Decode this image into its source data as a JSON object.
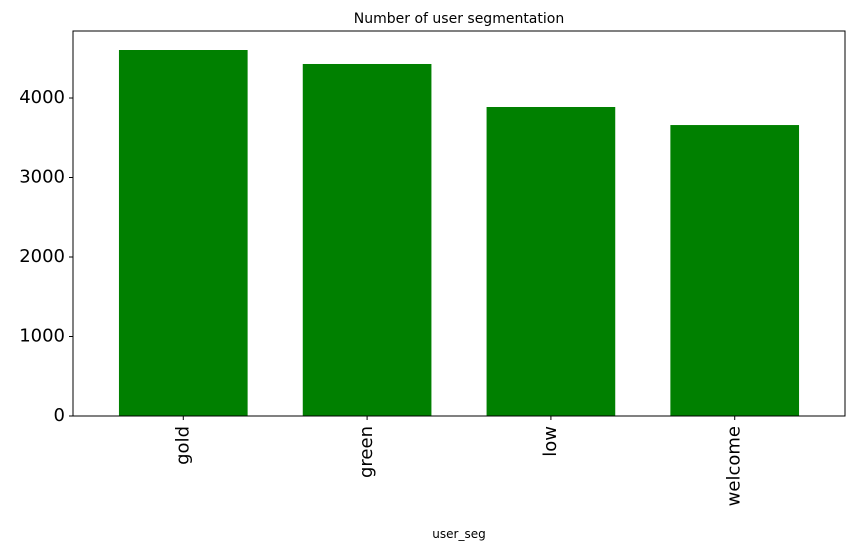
{
  "chart_data": {
    "type": "bar",
    "title": "Number of user segmentation",
    "x_label": "user_seg",
    "categories": [
      "gold",
      "green",
      "low",
      "welcome"
    ],
    "values": [
      4604,
      4428,
      3887,
      3660
    ],
    "color": "#008000",
    "ylim": [
      0,
      4843
    ],
    "yticks": [
      0,
      1000,
      2000,
      3000,
      4000
    ]
  }
}
